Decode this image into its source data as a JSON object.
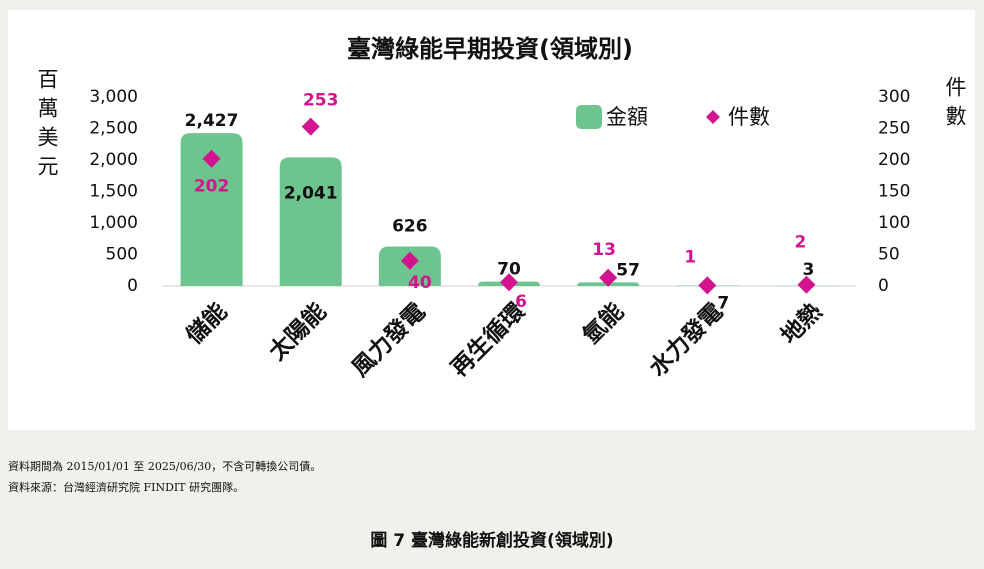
{
  "chart_data": {
    "type": "bar-diamond",
    "title": "臺灣綠能早期投資(領域別)",
    "y_label": "百萬美元",
    "y2_label": "件數",
    "categories": [
      "儲能",
      "太陽能",
      "風力發電",
      "再生循環",
      "氫能",
      "水力發電",
      "地熱"
    ],
    "series": [
      {
        "name": "金額",
        "color": "#6dc48f",
        "values": [
          2427,
          2041,
          626,
          70,
          57,
          7,
          3
        ],
        "value_labels": [
          "2,427",
          "2,041",
          "626",
          "70",
          "57",
          "7",
          "3"
        ]
      },
      {
        "name": "件數",
        "color": "#d4148e",
        "axis": "y2",
        "values": [
          202,
          253,
          40,
          6,
          13,
          1,
          2
        ]
      }
    ],
    "ylim": [
      0,
      3000
    ],
    "yticks": [
      {
        "value": 0,
        "label": "0"
      },
      {
        "value": 500,
        "label": "500"
      },
      {
        "value": 1000,
        "label": "1,000"
      },
      {
        "value": 1500,
        "label": "1,500"
      },
      {
        "value": 2000,
        "label": "2,000"
      },
      {
        "value": 2500,
        "label": "2,500"
      },
      {
        "value": 3000,
        "label": "3,000"
      }
    ],
    "y2lim": [
      0,
      300
    ],
    "y2ticks": [
      0,
      50,
      100,
      150,
      200,
      250,
      300
    ]
  },
  "notes": [
    "資料期間為 2015/01/01 至 2025/06/30，不含可轉換公司債。",
    "資料來源：台灣經濟研究院 FINDIT 研究團隊。"
  ],
  "caption": "圖 7  臺灣綠能新創投資(領域別)"
}
